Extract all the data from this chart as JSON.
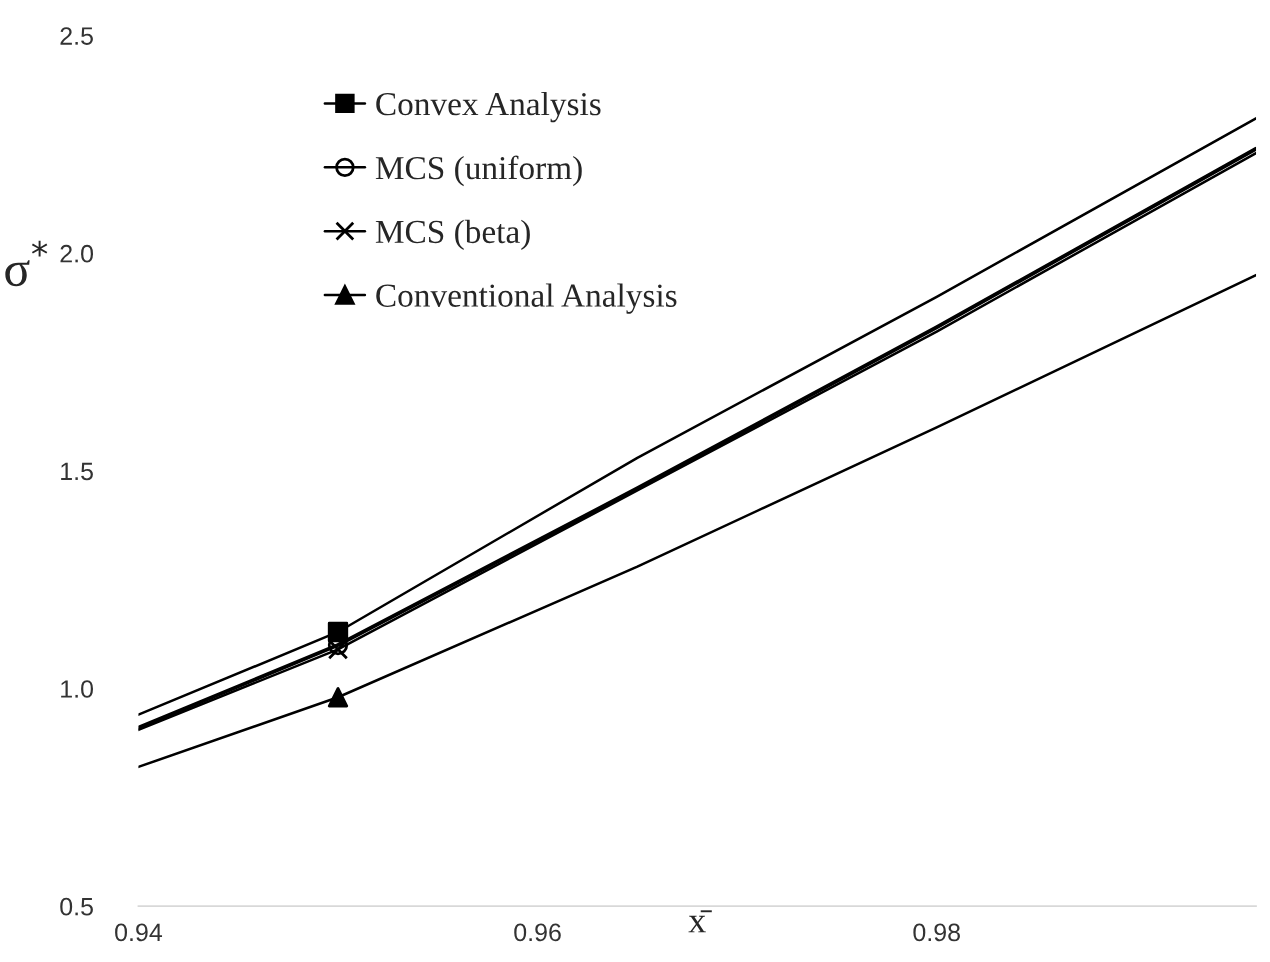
{
  "chart_data": {
    "type": "line",
    "xlabel": "x̄",
    "ylabel": "σ$^{*}$",
    "x": [
      0.94,
      0.95,
      0.965,
      0.98,
      0.996
    ],
    "series": [
      {
        "name": "Convex Analysis",
        "color": "#000000",
        "values": [
          0.94,
          1.13,
          1.53,
          1.9,
          2.31
        ]
      },
      {
        "name": "MCS (uniform)",
        "color": "#000000",
        "values": [
          0.91,
          1.1,
          1.46,
          1.83,
          2.24
        ]
      },
      {
        "name": "MCS (beta)",
        "color": "#000000",
        "values": [
          0.905,
          1.09,
          1.455,
          1.82,
          2.23
        ]
      },
      {
        "name": "Conventional Analysis",
        "color": "#000000",
        "values": [
          0.82,
          0.98,
          1.28,
          1.6,
          1.95
        ]
      },
      {
        "type": "scatter",
        "marker": "square",
        "color": "#000000",
        "values": [
          null,
          1.13,
          null,
          null,
          null
        ]
      },
      {
        "type": "scatter",
        "marker": "circle",
        "color": "#000000",
        "values": [
          null,
          1.1,
          null,
          null,
          null
        ]
      },
      {
        "type": "scatter",
        "marker": "cross",
        "color": "#000000",
        "values": [
          null,
          1.09,
          null,
          null,
          null
        ]
      },
      {
        "type": "scatter",
        "marker": "triangle",
        "color": "#000000",
        "values": [
          null,
          0.98,
          null,
          null,
          null
        ]
      }
    ],
    "xlim": [
      0.94,
      0.996
    ],
    "xticks": [
      0.94,
      0.96,
      0.98
    ],
    "ylim": [
      0.5,
      2.5
    ],
    "yticks": [
      {
        "value": 0.5,
        "label": "0.5"
      },
      {
        "value": 1.0,
        "label": "1.0"
      },
      {
        "value": 1.5,
        "label": "1.5"
      },
      {
        "value": 2.0,
        "label": "2.0"
      },
      {
        "value": 2.5,
        "label": "2.5"
      }
    ],
    "grid": false,
    "legend": "top left",
    "line_style": "solid"
  }
}
